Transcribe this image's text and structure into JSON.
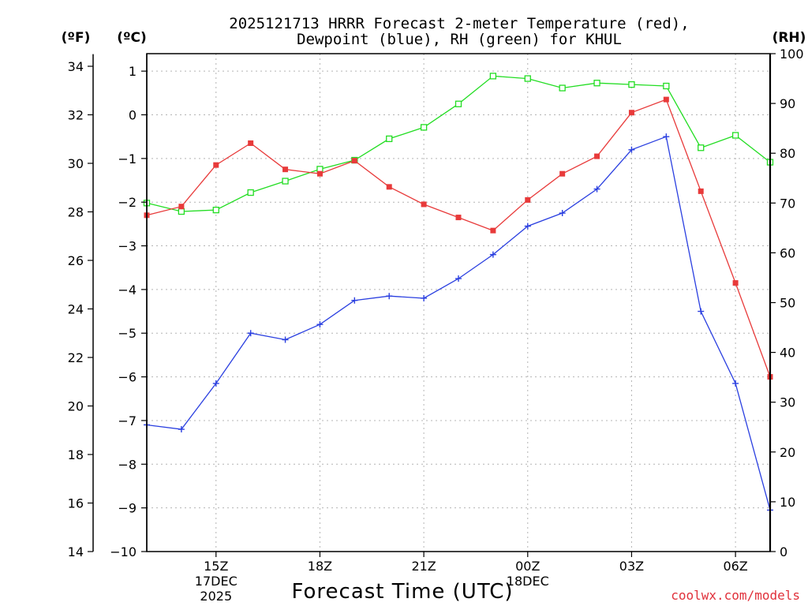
{
  "chart_data": {
    "type": "line",
    "title_line1": "2025121713 HRRR Forecast 2-meter Temperature (red),",
    "title_line2": "Dewpoint (blue), RH (green) for KHUL",
    "xlabel": "Forecast Time (UTC)",
    "units": {
      "fahrenheit": "(ºF)",
      "celsius": "(ºC)",
      "rh": "(RH)"
    },
    "x_hours": [
      13,
      14,
      15,
      16,
      17,
      18,
      19,
      20,
      21,
      22,
      23,
      24,
      25,
      26,
      27,
      28,
      29,
      30,
      31
    ],
    "x_ticks": [
      {
        "hour": 15,
        "label": "15Z",
        "sub1": "17DEC",
        "sub2": "2025"
      },
      {
        "hour": 18,
        "label": "18Z",
        "sub1": "",
        "sub2": ""
      },
      {
        "hour": 21,
        "label": "21Z",
        "sub1": "",
        "sub2": ""
      },
      {
        "hour": 24,
        "label": "00Z",
        "sub1": "18DEC",
        "sub2": ""
      },
      {
        "hour": 27,
        "label": "03Z",
        "sub1": "",
        "sub2": ""
      },
      {
        "hour": 30,
        "label": "06Z",
        "sub1": "",
        "sub2": ""
      }
    ],
    "xlim": [
      13,
      31
    ],
    "celsius_ylim": [
      -10,
      1.4
    ],
    "celsius_ticks": [
      "1",
      "0",
      "−1",
      "−2",
      "−3",
      "−4",
      "−5",
      "−6",
      "−7",
      "−8",
      "−9",
      "−10"
    ],
    "fahrenheit_ticks": [
      "34",
      "32",
      "30",
      "28",
      "26",
      "24",
      "22",
      "20",
      "18",
      "16",
      "14"
    ],
    "rh_ylim": [
      0,
      100
    ],
    "rh_ticks": [
      "100",
      "90",
      "80",
      "70",
      "60",
      "50",
      "40",
      "30",
      "20",
      "10",
      "0"
    ],
    "series": [
      {
        "name": "Temperature",
        "unit": "C",
        "color": "#e83a3a",
        "marker": "filled-square",
        "values": [
          -2.3,
          -2.1,
          -1.15,
          -0.65,
          -1.25,
          -1.35,
          -1.05,
          -1.65,
          -2.05,
          -2.35,
          -2.65,
          -1.95,
          -1.35,
          -0.95,
          0.05,
          0.35,
          -1.75,
          -3.85,
          -6.0
        ]
      },
      {
        "name": "Dewpoint",
        "unit": "C",
        "color": "#2a3fe0",
        "marker": "plus",
        "values": [
          -7.1,
          -7.2,
          -6.15,
          -5.0,
          -5.15,
          -4.8,
          -4.25,
          -4.15,
          -4.2,
          -3.75,
          -3.2,
          -2.55,
          -2.25,
          -1.7,
          -0.8,
          -0.5,
          -4.5,
          -6.15,
          -9.05
        ]
      },
      {
        "name": "RH",
        "unit": "%",
        "color": "#22dd22",
        "marker": "open-square",
        "values": [
          70,
          68.3,
          68.6,
          72.1,
          74.4,
          76.8,
          78.6,
          82.9,
          85.2,
          89.9,
          95.5,
          95.0,
          93.1,
          94.1,
          93.8,
          93.5,
          81.1,
          83.6,
          78.2
        ]
      }
    ]
  },
  "footer": {
    "credit": "coolwx.com/models"
  }
}
